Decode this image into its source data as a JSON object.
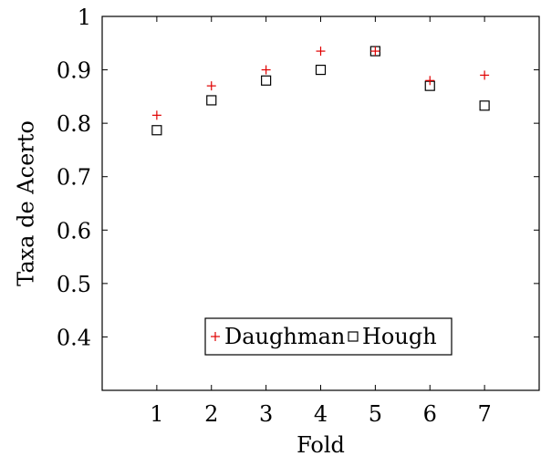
{
  "chart_data": {
    "type": "scatter",
    "xlabel": "Fold",
    "ylabel": "Taxa de Acerto",
    "xlim": [
      0,
      8
    ],
    "ylim": [
      0.3,
      1.0
    ],
    "xticks": [
      1,
      2,
      3,
      4,
      5,
      6,
      7
    ],
    "yticks": [
      0.4,
      0.5,
      0.6,
      0.7,
      0.8,
      0.9,
      1.0
    ],
    "ytick_labels": [
      "0.4",
      "0.5",
      "0.6",
      "0.7",
      "0.8",
      "0.9",
      "1"
    ],
    "grid": false,
    "legend_position": "bottom-center",
    "series": [
      {
        "name": "Daughman",
        "marker": "plus",
        "color": "#e00000",
        "x": [
          1,
          2,
          3,
          4,
          5,
          6,
          7
        ],
        "y": [
          0.815,
          0.87,
          0.9,
          0.935,
          0.935,
          0.88,
          0.89
        ]
      },
      {
        "name": "Hough",
        "marker": "square",
        "color": "#000000",
        "x": [
          1,
          2,
          3,
          4,
          5,
          6,
          7
        ],
        "y": [
          0.787,
          0.843,
          0.88,
          0.9,
          0.935,
          0.87,
          0.833
        ]
      }
    ]
  }
}
